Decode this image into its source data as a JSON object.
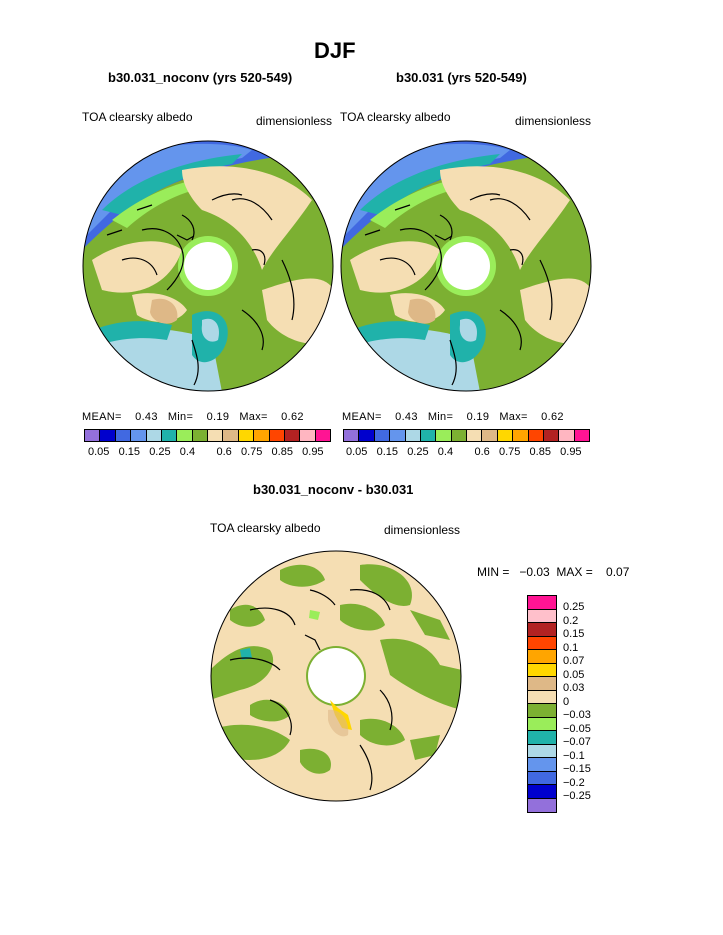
{
  "title": "DJF",
  "panels": [
    {
      "case": "b30.031_noconv (yrs 520-549)",
      "variable": "TOA clearsky albedo",
      "units": "dimensionless",
      "stats": {
        "mean_label": "MEAN=",
        "mean": "0.43",
        "min_label": "Min=",
        "min": "0.19",
        "max_label": "Max=",
        "max": "0.62"
      }
    },
    {
      "case": "b30.031 (yrs 520-549)",
      "variable": "TOA clearsky albedo",
      "units": "dimensionless",
      "stats": {
        "mean_label": "MEAN=",
        "mean": "0.43",
        "min_label": "Min=",
        "min": "0.19",
        "max_label": "Max=",
        "max": "0.62"
      }
    }
  ],
  "abs_colorbar": {
    "colors": [
      "#9370db",
      "#0000cd",
      "#4169e1",
      "#6495ed",
      "#add8e6",
      "#20b2aa",
      "#9aed5a",
      "#7cb032",
      "#f5deb3",
      "#deb887",
      "#ffd700",
      "#ffa500",
      "#ff4500",
      "#b22222",
      "#ffb6c1",
      "#ff1493"
    ],
    "ticks": [
      "0.05",
      "0.15",
      "0.25",
      "0.4",
      "0.6",
      "0.75",
      "0.85",
      "0.95"
    ]
  },
  "diff": {
    "title": "b30.031_noconv - b30.031",
    "variable": "TOA clearsky albedo",
    "units": "dimensionless",
    "minmax": "MIN =   −0.03  MAX =    0.07",
    "colors": [
      "#ff1493",
      "#ffc0cb",
      "#b22222",
      "#ff4500",
      "#ffa500",
      "#ffd700",
      "#deb887",
      "#f5deb3",
      "#7cb032",
      "#9aed5a",
      "#20b2aa",
      "#add8e6",
      "#6495ed",
      "#4169e1",
      "#0000cd",
      "#9370db"
    ],
    "ticks": [
      "0.25",
      "0.2",
      "0.15",
      "0.1",
      "0.07",
      "0.05",
      "0.03",
      "0",
      "−0.03",
      "−0.05",
      "−0.07",
      "−0.1",
      "−0.15",
      "−0.2",
      "−0.25"
    ]
  }
}
